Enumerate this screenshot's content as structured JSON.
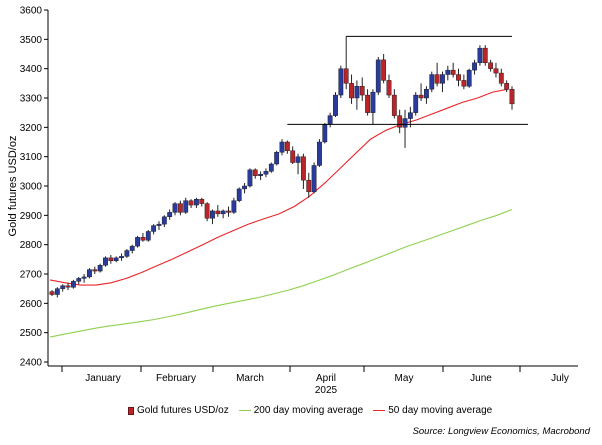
{
  "chart_data": {
    "type": "candlestick",
    "ylabel": "Gold futures USD/oz",
    "ylim": [
      2400,
      3600
    ],
    "y_ticks": [
      2400,
      2500,
      2600,
      2700,
      2800,
      2900,
      3000,
      3100,
      3200,
      3300,
      3400,
      3500,
      3600
    ],
    "x_labels": [
      "January",
      "February",
      "March",
      "April",
      "May",
      "June",
      "July"
    ],
    "x_year_label": "2025",
    "legend_placement": "bottom",
    "series": [
      {
        "name": "Gold futures USD/oz",
        "kind": "candlestick",
        "ohlc": [
          [
            2640,
            2645,
            2625,
            2630
          ],
          [
            2630,
            2655,
            2620,
            2650
          ],
          [
            2650,
            2665,
            2640,
            2660
          ],
          [
            2660,
            2670,
            2645,
            2655
          ],
          [
            2655,
            2680,
            2650,
            2675
          ],
          [
            2675,
            2690,
            2665,
            2685
          ],
          [
            2685,
            2700,
            2670,
            2690
          ],
          [
            2690,
            2720,
            2685,
            2715
          ],
          [
            2715,
            2725,
            2700,
            2710
          ],
          [
            2710,
            2735,
            2705,
            2730
          ],
          [
            2730,
            2760,
            2725,
            2755
          ],
          [
            2755,
            2765,
            2735,
            2745
          ],
          [
            2745,
            2760,
            2740,
            2755
          ],
          [
            2755,
            2770,
            2745,
            2760
          ],
          [
            2760,
            2785,
            2755,
            2780
          ],
          [
            2780,
            2800,
            2770,
            2795
          ],
          [
            2795,
            2830,
            2790,
            2825
          ],
          [
            2825,
            2840,
            2810,
            2815
          ],
          [
            2815,
            2850,
            2810,
            2845
          ],
          [
            2845,
            2870,
            2835,
            2865
          ],
          [
            2865,
            2880,
            2850,
            2870
          ],
          [
            2870,
            2900,
            2860,
            2895
          ],
          [
            2895,
            2920,
            2885,
            2910
          ],
          [
            2910,
            2945,
            2900,
            2940
          ],
          [
            2940,
            2950,
            2900,
            2910
          ],
          [
            2910,
            2960,
            2905,
            2950
          ],
          [
            2950,
            2955,
            2925,
            2935
          ],
          [
            2935,
            2960,
            2925,
            2955
          ],
          [
            2955,
            2960,
            2930,
            2940
          ],
          [
            2940,
            2945,
            2880,
            2890
          ],
          [
            2890,
            2920,
            2870,
            2915
          ],
          [
            2915,
            2935,
            2895,
            2905
          ],
          [
            2905,
            2920,
            2890,
            2915
          ],
          [
            2915,
            2930,
            2895,
            2910
          ],
          [
            2910,
            2960,
            2905,
            2950
          ],
          [
            2950,
            2995,
            2945,
            2990
          ],
          [
            2990,
            3010,
            2975,
            3000
          ],
          [
            3000,
            3060,
            2995,
            3055
          ],
          [
            3055,
            3060,
            3025,
            3035
          ],
          [
            3035,
            3050,
            3020,
            3040
          ],
          [
            3040,
            3060,
            3030,
            3050
          ],
          [
            3050,
            3080,
            3045,
            3075
          ],
          [
            3075,
            3120,
            3070,
            3115
          ],
          [
            3115,
            3160,
            3105,
            3150
          ],
          [
            3150,
            3155,
            3110,
            3120
          ],
          [
            3120,
            3135,
            3075,
            3080
          ],
          [
            3080,
            3110,
            3040,
            3100
          ],
          [
            3100,
            3110,
            2990,
            3020
          ],
          [
            3020,
            3045,
            2960,
            2980
          ],
          [
            2980,
            3080,
            2975,
            3070
          ],
          [
            3070,
            3160,
            3065,
            3150
          ],
          [
            3150,
            3215,
            3145,
            3210
          ],
          [
            3210,
            3250,
            3200,
            3240
          ],
          [
            3240,
            3320,
            3235,
            3310
          ],
          [
            3310,
            3410,
            3300,
            3400
          ],
          [
            3400,
            3510,
            3330,
            3350
          ],
          [
            3350,
            3380,
            3280,
            3300
          ],
          [
            3300,
            3360,
            3260,
            3340
          ],
          [
            3340,
            3370,
            3290,
            3310
          ],
          [
            3310,
            3330,
            3240,
            3250
          ],
          [
            3250,
            3330,
            3210,
            3320
          ],
          [
            3320,
            3440,
            3310,
            3430
          ],
          [
            3430,
            3450,
            3350,
            3360
          ],
          [
            3360,
            3380,
            3300,
            3310
          ],
          [
            3310,
            3330,
            3230,
            3240
          ],
          [
            3240,
            3260,
            3180,
            3200
          ],
          [
            3200,
            3260,
            3130,
            3230
          ],
          [
            3230,
            3270,
            3200,
            3250
          ],
          [
            3250,
            3320,
            3240,
            3310
          ],
          [
            3310,
            3350,
            3290,
            3300
          ],
          [
            3300,
            3340,
            3280,
            3330
          ],
          [
            3330,
            3390,
            3320,
            3380
          ],
          [
            3380,
            3420,
            3340,
            3350
          ],
          [
            3350,
            3390,
            3320,
            3380
          ],
          [
            3380,
            3410,
            3360,
            3395
          ],
          [
            3395,
            3420,
            3370,
            3380
          ],
          [
            3380,
            3400,
            3340,
            3360
          ],
          [
            3360,
            3380,
            3330,
            3340
          ],
          [
            3340,
            3400,
            3335,
            3395
          ],
          [
            3395,
            3430,
            3380,
            3420
          ],
          [
            3420,
            3480,
            3410,
            3470
          ],
          [
            3470,
            3480,
            3410,
            3420
          ],
          [
            3420,
            3430,
            3390,
            3400
          ],
          [
            3400,
            3420,
            3370,
            3385
          ],
          [
            3385,
            3400,
            3340,
            3350
          ],
          [
            3350,
            3360,
            3320,
            3330
          ],
          [
            3330,
            3340,
            3260,
            3280
          ]
        ]
      },
      {
        "name": "200 day moving average",
        "kind": "line",
        "color": "#8fd14f",
        "values": [
          2485,
          2495,
          2505,
          2515,
          2523,
          2530,
          2537,
          2545,
          2555,
          2566,
          2578,
          2590,
          2600,
          2610,
          2620,
          2632,
          2645,
          2660,
          2678,
          2696,
          2716,
          2735,
          2755,
          2775,
          2795,
          2812,
          2830,
          2848,
          2866,
          2884,
          2900,
          2920
        ]
      },
      {
        "name": "50 day moving average",
        "kind": "line",
        "color": "#e8262b",
        "values": [
          2680,
          2670,
          2662,
          2662,
          2670,
          2685,
          2705,
          2728,
          2750,
          2775,
          2800,
          2825,
          2848,
          2870,
          2888,
          2905,
          2930,
          2965,
          3010,
          3060,
          3110,
          3160,
          3190,
          3210,
          3225,
          3245,
          3265,
          3285,
          3300,
          3320,
          3330
        ]
      }
    ],
    "reference_lines": [
      {
        "y": 3510,
        "x_from": 55,
        "x_to": 86
      },
      {
        "y": 3210,
        "x_from": 44,
        "x_to": 89
      }
    ]
  },
  "legend": [
    {
      "label": "Gold futures USD/oz",
      "kind": "candle",
      "color": "#b8262b"
    },
    {
      "label": "200 day moving average",
      "kind": "line",
      "color": "#8fd14f"
    },
    {
      "label": "50 day moving average",
      "kind": "line",
      "color": "#e8262b"
    }
  ],
  "colors": {
    "up": "#2a3b9c",
    "down": "#b8262b",
    "grid": "#cfcfcf"
  },
  "source": "Source: Longview Economics, Macrobond"
}
